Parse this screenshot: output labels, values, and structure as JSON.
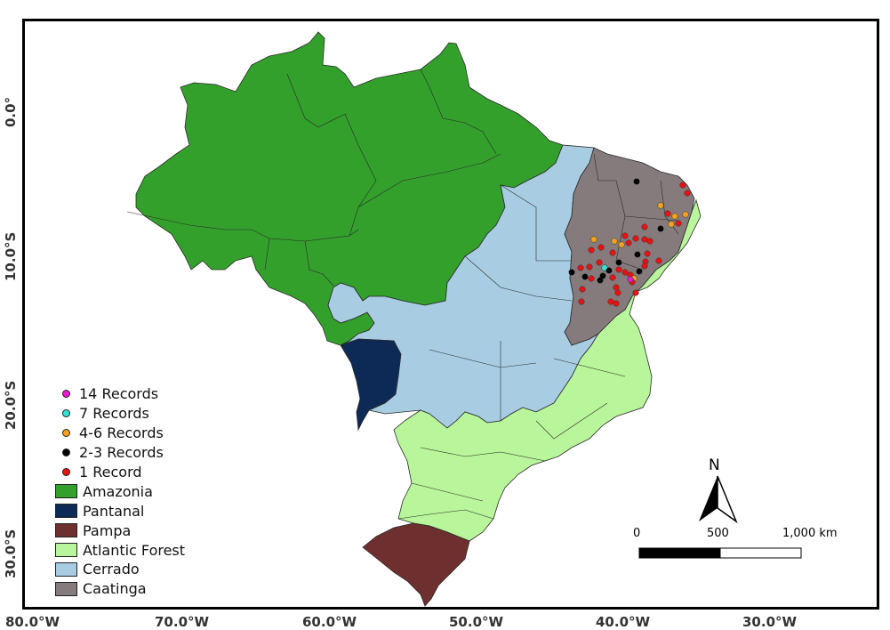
{
  "axes": {
    "longitude_labels": [
      "80.0°W",
      "70.0°W",
      "60.0°W",
      "50.0°W",
      "40.0°W",
      "30.0°W"
    ],
    "latitude_labels": [
      "0.0°",
      "10.0°S",
      "20.0°S",
      "30.0°S"
    ]
  },
  "legend": {
    "points": [
      {
        "label": "14 Records",
        "color": "#e61ccf"
      },
      {
        "label": "7 Records",
        "color": "#35e3d7"
      },
      {
        "label": "4-6 Records",
        "color": "#f5a21a"
      },
      {
        "label": "2-3 Records",
        "color": "#000000"
      },
      {
        "label": "1 Record",
        "color": "#e51313"
      }
    ],
    "biomes": [
      {
        "label": "Amazonia",
        "color": "#33a02c"
      },
      {
        "label": "Pantanal",
        "color": "#0c2a55"
      },
      {
        "label": "Pampa",
        "color": "#6e2f2f"
      },
      {
        "label": "Atlantic Forest",
        "color": "#b9f59a"
      },
      {
        "label": "Cerrado",
        "color": "#a8cde3"
      },
      {
        "label": "Caatinga",
        "color": "#857b7d"
      }
    ]
  },
  "north_arrow": {
    "label": "N"
  },
  "scale_bar": {
    "labels": [
      "0",
      "500",
      "1,000 km"
    ]
  }
}
